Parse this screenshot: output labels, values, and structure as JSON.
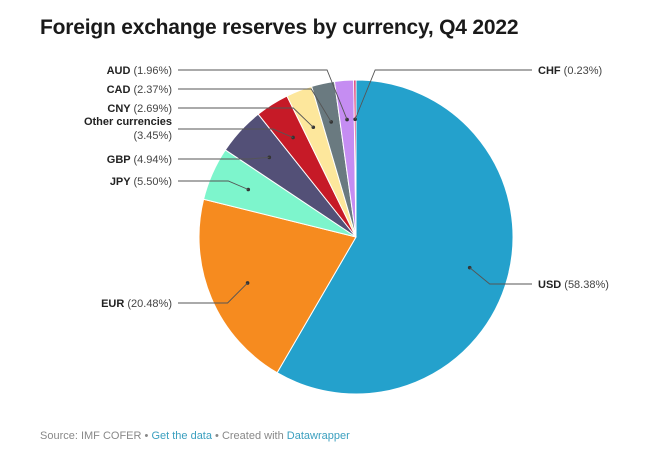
{
  "title": "Foreign exchange reserves by currency, Q4 2022",
  "footer": {
    "source": "Source: IMF COFER",
    "sep1": " • ",
    "get_data": "Get the data",
    "sep2": " • Created with ",
    "created_with": "Datawrapper"
  },
  "chart_data": {
    "type": "pie",
    "unit": "%",
    "slices": [
      {
        "name": "USD",
        "value": 58.38,
        "label": "(58.38%)",
        "color": "#24a1cc"
      },
      {
        "name": "EUR",
        "value": 20.48,
        "label": "(20.48%)",
        "color": "#f68b1f"
      },
      {
        "name": "JPY",
        "value": 5.5,
        "label": "(5.50%)",
        "color": "#7df5cc"
      },
      {
        "name": "GBP",
        "value": 4.94,
        "label": "(4.94%)",
        "color": "#535077"
      },
      {
        "name": "Other currencies",
        "value": 3.45,
        "label": "(3.45%)",
        "color": "#c61a27"
      },
      {
        "name": "CNY",
        "value": 2.69,
        "label": "(2.69%)",
        "color": "#fde79c"
      },
      {
        "name": "CAD",
        "value": 2.37,
        "label": "(2.37%)",
        "color": "#6a7a80"
      },
      {
        "name": "AUD",
        "value": 1.96,
        "label": "(1.96%)",
        "color": "#c58df2"
      },
      {
        "name": "CHF",
        "value": 0.23,
        "label": "(0.23%)",
        "color": "#d4145a"
      }
    ]
  }
}
